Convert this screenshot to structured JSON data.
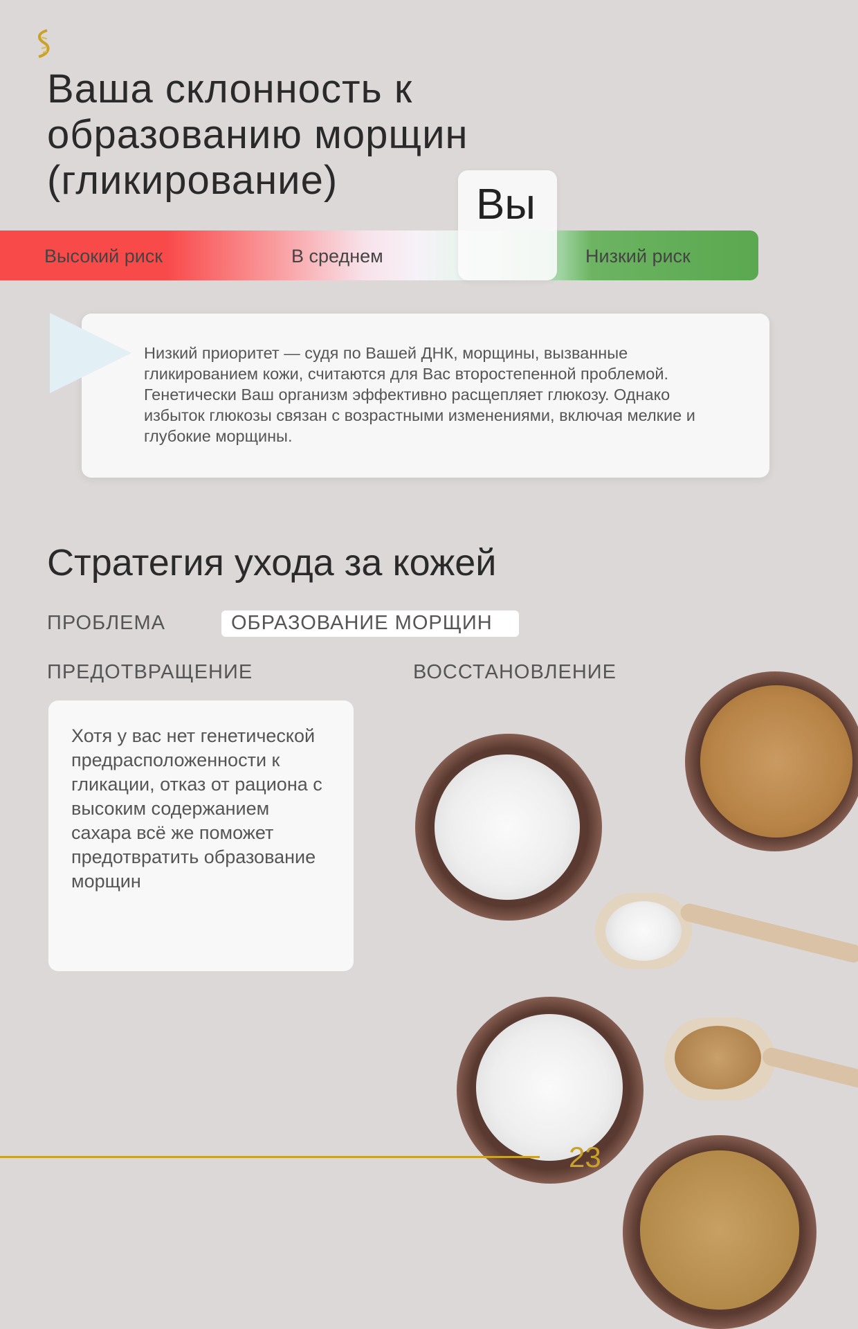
{
  "logo": {
    "icon": "dna-helix-icon",
    "color": "#c9a227"
  },
  "title": "Ваша склонность к образованию морщин (гликирование)",
  "risk_scale": {
    "labels": [
      "Высокий риск",
      "В среднем",
      "Низкий риск"
    ],
    "marker_label": "Вы",
    "marker_position": "between average and low risk",
    "colors": {
      "high": "#f94a4a",
      "low": "#5aa84f"
    }
  },
  "result_text": "Низкий приоритет — судя по Вашей ДНК, морщины, вызванные гликированием кожи, считаются для Вас второстепенной проблемой. Генетически Ваш организм эффективно расщепляет глюкозу. Однако избыток глюкозы связан с возрастными изменениями, включая мелкие и глубокие морщины.",
  "strategy": {
    "heading": "Стратегия ухода за кожей",
    "problem_label": "ПРОБЛЕМА",
    "problem_value": "ОБРАЗОВАНИЕ МОРЩИН",
    "prevention_label": "ПРЕДОТВРАЩЕНИЕ",
    "recovery_label": "ВОССТАНОВЛЕНИЕ",
    "prevention_text": "Хотя у вас нет генетической предрасположенности к гликации, отказ от рациона с высоким содержанием сахара всё же поможет предотвратить образование морщин"
  },
  "page_number": "23"
}
